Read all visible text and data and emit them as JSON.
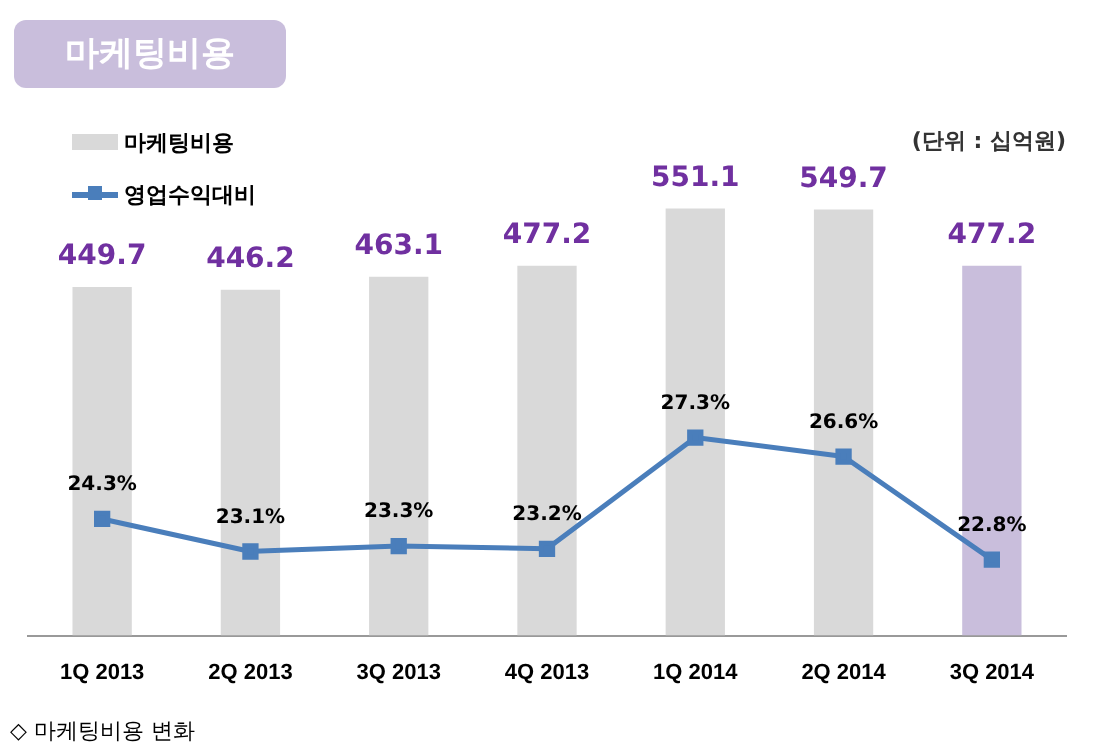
{
  "chart_data": {
    "type": "bar",
    "title": "마케팅비용",
    "categories": [
      "1Q 2013",
      "2Q 2013",
      "3Q 2013",
      "4Q 2013",
      "1Q 2014",
      "2Q 2014",
      "3Q 2014"
    ],
    "series": [
      {
        "name": "마케팅비용",
        "color": "#d9d9d9",
        "colors": [
          "#d9d9d9",
          "#d9d9d9",
          "#d9d9d9",
          "#d9d9d9",
          "#d9d9d9",
          "#d9d9d9",
          "#c9bedc"
        ],
        "values": [
          449.7,
          446.2,
          463.1,
          477.2,
          551.1,
          549.7,
          477.2
        ],
        "value_labels": [
          "449.7",
          "446.2",
          "463.1",
          "477.2",
          "551.1",
          "549.7",
          "477.2"
        ]
      },
      {
        "name": "영업수익대비",
        "type": "line",
        "axis": "y2",
        "color": "#4a7ebb",
        "marker": "square",
        "values": [
          24.3,
          23.1,
          23.3,
          23.2,
          27.3,
          26.6,
          22.8
        ],
        "value_labels": [
          "24.3%",
          "23.1%",
          "23.3%",
          "23.2%",
          "27.3%",
          "26.6%",
          "22.8%"
        ]
      }
    ],
    "tick_labels": "x",
    "grid": false,
    "legend": "top left",
    "annotations": [
      "(단위 : 십억원)",
      "◇ 마케팅비용 변화"
    ]
  }
}
